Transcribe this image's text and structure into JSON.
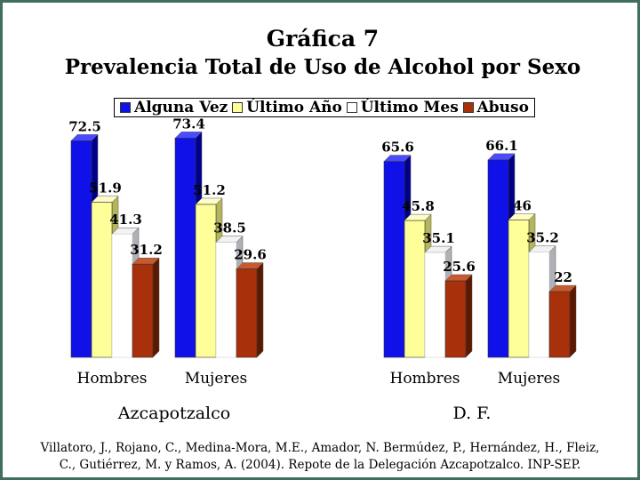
{
  "title_line1": "Gráfica 7",
  "title_line2": "Prevalencia Total de Uso de Alcohol por Sexo",
  "chart_data": {
    "type": "bar",
    "legend_position": "top",
    "series": [
      {
        "name": "Alguna Vez",
        "color": "#1010e8"
      },
      {
        "name": "Último Año",
        "color": "#ffff99"
      },
      {
        "name": "Último Mes",
        "color": "#ffffff"
      },
      {
        "name": "Abuso",
        "color": "#a8300a"
      }
    ],
    "groups": [
      {
        "label": "Azcapotzalco",
        "categories": [
          {
            "label": "Hombres",
            "values": [
              72.5,
              51.9,
              41.3,
              31.2
            ],
            "value_labels": [
              "72.5",
              "51.9",
              "41.3",
              "31.2"
            ]
          },
          {
            "label": "Mujeres",
            "values": [
              73.4,
              51.2,
              38.5,
              29.6
            ],
            "value_labels": [
              "73.4",
              "51.2",
              "38.5",
              "29.6"
            ]
          }
        ]
      },
      {
        "label": "D. F.",
        "categories": [
          {
            "label": "Hombres",
            "values": [
              65.6,
              45.8,
              35.1,
              25.6
            ],
            "value_labels": [
              "65.6",
              "45.8",
              "35.1",
              "25.6"
            ]
          },
          {
            "label": "Mujeres",
            "values": [
              66.1,
              46,
              35.2,
              22
            ],
            "value_labels": [
              "66.1",
              "46",
              "35.2",
              "22"
            ]
          }
        ]
      }
    ]
  },
  "source_line1": "Villatoro, J., Rojano, C., Medina-Mora, M.E., Amador, N. Bermúdez, P., Hernández, H., Fleiz,",
  "source_line2": "C., Gutiérrez, M. y Ramos, A. (2004). Repote de la Delegación Azcapotzalco. INP-SEP."
}
